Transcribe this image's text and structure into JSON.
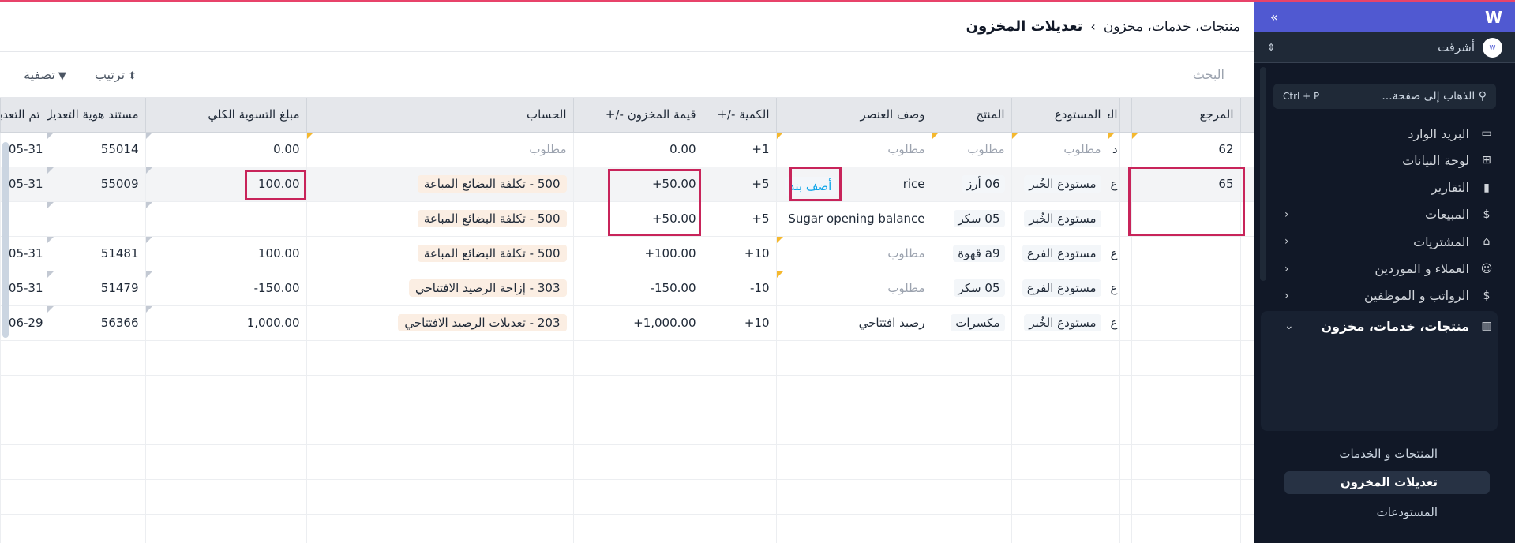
{
  "breadcrumb": {
    "parent": "منتجات، خدمات، مخزون",
    "separator": "›",
    "current": "تعديلات المخزون"
  },
  "toolbar": {
    "search_placeholder": "البحث",
    "sort_label": "ترتيب",
    "filter_label": "تصفية"
  },
  "table": {
    "columns": [
      "المرجع",
      "",
      "العلامة",
      "المستودع",
      "المنتج",
      "وصف العنصر",
      "الكمية -/+",
      "قيمة المخزون -/+",
      "الحساب",
      "مبلغ التسوية الكلي",
      "مستند هوية التعديل",
      "تم التعديل"
    ],
    "rows": [
      {
        "ref": "62",
        "flag": "د",
        "warehouse": "مطلوب",
        "product": "مطلوب",
        "desc": "مطلوب",
        "qty": "+1",
        "value": "0.00",
        "account": "مطلوب",
        "total": "0.00",
        "doc": "55014",
        "date": "05-31"
      },
      {
        "ref": "65",
        "flag": "ع",
        "warehouse": "مستودع الخُبر",
        "product": "06 أرز",
        "desc": "rice",
        "add_label": "أضف بند",
        "qty": "+5",
        "value": "+50.00",
        "account": "500 - تكلفة البضائع المباعة",
        "total": "100.00",
        "doc": "55009",
        "date": "05-31"
      },
      {
        "ref": "",
        "flag": "",
        "warehouse": "مستودع الخُبر",
        "product": "05 سكر",
        "desc": "Sugar opening balance",
        "qty": "+5",
        "value": "+50.00",
        "account": "500 - تكلفة البضائع المباعة",
        "total": "",
        "doc": "",
        "date": ""
      },
      {
        "ref": "",
        "flag": "ع",
        "warehouse": "مستودع الفرع",
        "product": "a9 قهوة",
        "desc": "مطلوب",
        "qty": "+10",
        "value": "+100.00",
        "account": "500 - تكلفة البضائع المباعة",
        "total": "100.00",
        "doc": "51481",
        "date": "05-31"
      },
      {
        "ref": "",
        "flag": "ع",
        "warehouse": "مستودع الفرع",
        "product": "05 سكر",
        "desc": "مطلوب",
        "qty": "-10",
        "value": "-150.00",
        "account": "303 - إزاحة الرصيد الافتتاحي",
        "total": "-150.00",
        "doc": "51479",
        "date": "05-31"
      },
      {
        "ref": "",
        "flag": "ع",
        "warehouse": "مستودع الخُبر",
        "product": "مكسرات",
        "desc": "رصيد افتتاحي",
        "qty": "+10",
        "value": "+1,000.00",
        "account": "203 - تعديلات الرصيد الافتتاحي",
        "total": "1,000.00",
        "doc": "56366",
        "date": "06-29"
      }
    ]
  },
  "sidebar": {
    "org": "أشرقت",
    "search_placeholder": "الذهاب إلى صفحة...",
    "search_shortcut": "Ctrl + P",
    "items": [
      {
        "label": "البريد الوارد",
        "icon": "inbox-icon"
      },
      {
        "label": "لوحة البيانات",
        "icon": "dashboard-icon"
      },
      {
        "label": "التقارير",
        "icon": "chart-icon"
      },
      {
        "label": "المبيعات",
        "icon": "dollar-icon"
      },
      {
        "label": "المشتريات",
        "icon": "bag-icon"
      },
      {
        "label": "العملاء و الموردين",
        "icon": "users-icon"
      },
      {
        "label": "الرواتب و الموظفين",
        "icon": "payroll-icon"
      },
      {
        "label": "منتجات، خدمات، مخزون",
        "icon": "barcode-icon"
      }
    ],
    "sub_items": [
      "المنتجات و الخدمات",
      "تعديلات المخزون",
      "المستودعات"
    ]
  },
  "colors": {
    "accent": "#5059d1",
    "highlight_box": "#c8245a",
    "sidebar_bg": "#111827"
  }
}
